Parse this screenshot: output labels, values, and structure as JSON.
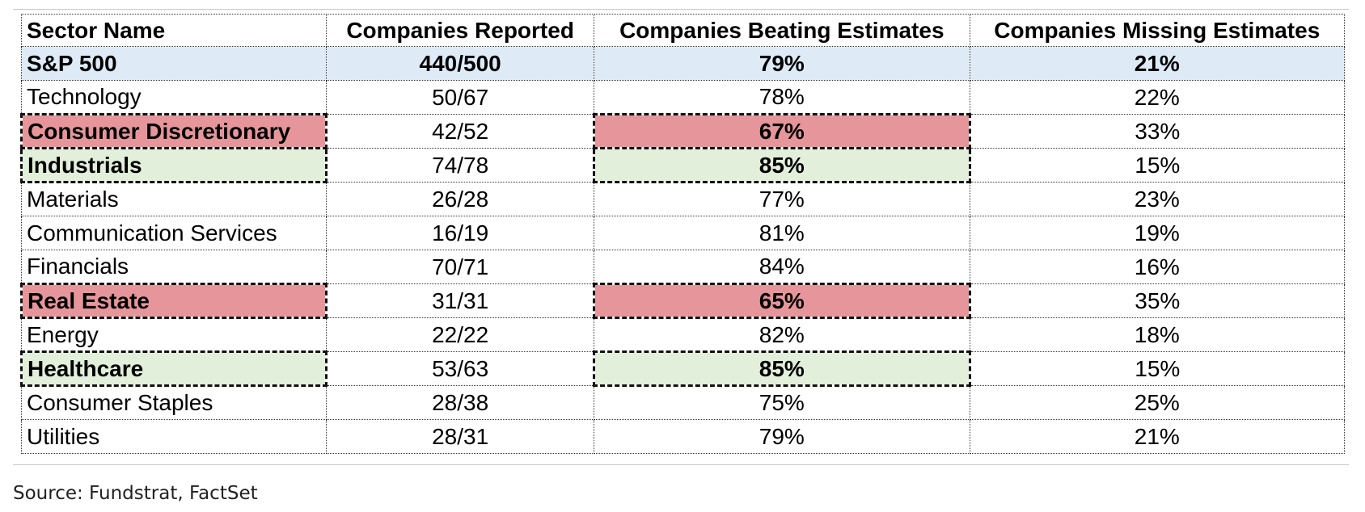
{
  "chart_data": {
    "type": "table",
    "columns": [
      "Sector Name",
      "Companies Reported",
      "Companies Beating Estimates",
      "Companies Missing Estimates"
    ],
    "rows": [
      {
        "sector": "S&P 500",
        "reported": "440/500",
        "beating": "79%",
        "missing": "21%",
        "style": "total"
      },
      {
        "sector": "Technology",
        "reported": "50/67",
        "beating": "78%",
        "missing": "22%",
        "style": "normal"
      },
      {
        "sector": "Consumer Discretionary",
        "reported": "42/52",
        "beating": "67%",
        "missing": "33%",
        "style": "red"
      },
      {
        "sector": "Industrials",
        "reported": "74/78",
        "beating": "85%",
        "missing": "15%",
        "style": "green"
      },
      {
        "sector": "Materials",
        "reported": "26/28",
        "beating": "77%",
        "missing": "23%",
        "style": "normal"
      },
      {
        "sector": "Communication Services",
        "reported": "16/19",
        "beating": "81%",
        "missing": "19%",
        "style": "normal"
      },
      {
        "sector": "Financials",
        "reported": "70/71",
        "beating": "84%",
        "missing": "16%",
        "style": "normal"
      },
      {
        "sector": "Real Estate",
        "reported": "31/31",
        "beating": "65%",
        "missing": "35%",
        "style": "red"
      },
      {
        "sector": "Energy",
        "reported": "22/22",
        "beating": "82%",
        "missing": "18%",
        "style": "normal"
      },
      {
        "sector": "Healthcare",
        "reported": "53/63",
        "beating": "85%",
        "missing": "15%",
        "style": "green"
      },
      {
        "sector": "Consumer Staples",
        "reported": "28/38",
        "beating": "75%",
        "missing": "25%",
        "style": "normal"
      },
      {
        "sector": "Utilities",
        "reported": "28/31",
        "beating": "79%",
        "missing": "21%",
        "style": "normal"
      }
    ]
  },
  "colors": {
    "total": "#deebf7",
    "red": "#e6969b",
    "green": "#e2efda"
  },
  "source": "Source: Fundstrat, FactSet"
}
